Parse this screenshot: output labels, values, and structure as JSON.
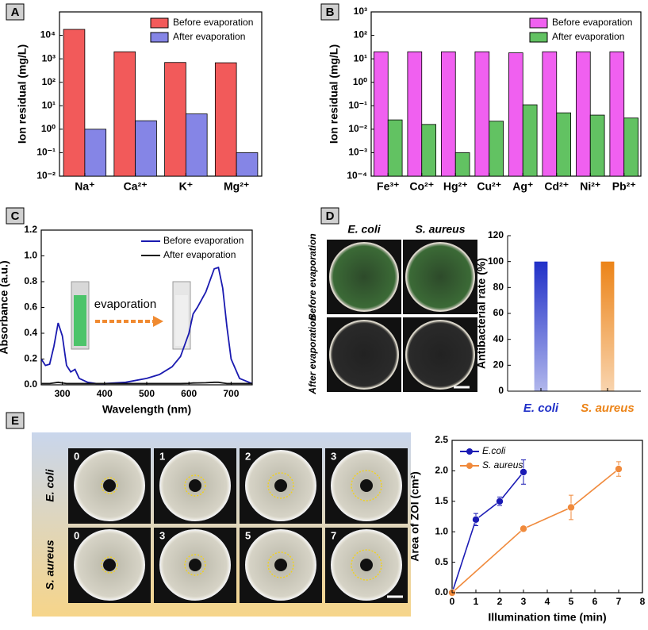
{
  "chart_data": [
    {
      "panel": "A",
      "type": "bar",
      "log_y": true,
      "ylabel": "Ion residual (mg/L)",
      "categories": [
        "Na⁺",
        "Ca²⁺",
        "K⁺",
        "Mg²⁺"
      ],
      "series": [
        {
          "name": "Before evaporation",
          "color": "#f25a5a",
          "values": [
            18000,
            2000,
            700,
            680
          ]
        },
        {
          "name": "After evaporation",
          "color": "#8585e6",
          "values": [
            1.0,
            2.3,
            4.5,
            0.1
          ]
        }
      ],
      "ylim": [
        0.01,
        100000
      ],
      "yticks": [
        {
          "value": 0.01,
          "label": "10⁻²"
        },
        {
          "value": 0.1,
          "label": "10⁻¹"
        },
        {
          "value": 1,
          "label": "10⁰"
        },
        {
          "value": 10,
          "label": "10¹"
        },
        {
          "value": 100,
          "label": "10²"
        },
        {
          "value": 1000,
          "label": "10³"
        },
        {
          "value": 10000,
          "label": "10⁴"
        }
      ],
      "legend": "upper right"
    },
    {
      "panel": "B",
      "type": "bar",
      "log_y": true,
      "ylabel": "Ion residual (mg/L)",
      "categories": [
        "Fe³⁺",
        "Co²⁺",
        "Hg²⁺",
        "Cu²⁺",
        "Ag⁺",
        "Cd²⁺",
        "Ni²⁺",
        "Pb²⁺"
      ],
      "series": [
        {
          "name": "Before evaporation",
          "color": "#f060f0",
          "values": [
            20,
            20,
            20,
            20,
            18,
            20,
            20,
            20
          ]
        },
        {
          "name": "After evaporation",
          "color": "#62c262",
          "values": [
            0.025,
            0.016,
            0.001,
            0.022,
            0.11,
            0.05,
            0.04,
            0.03
          ]
        }
      ],
      "ylim": [
        0.0001,
        1000
      ],
      "yticks": [
        {
          "value": 0.0001,
          "label": "10⁻⁴"
        },
        {
          "value": 0.001,
          "label": "10⁻³"
        },
        {
          "value": 0.01,
          "label": "10⁻²"
        },
        {
          "value": 0.1,
          "label": "10⁻¹"
        },
        {
          "value": 1,
          "label": "10⁰"
        },
        {
          "value": 10,
          "label": "10¹"
        },
        {
          "value": 100,
          "label": "10²"
        },
        {
          "value": 1000,
          "label": "10³"
        }
      ],
      "legend": "upper right"
    },
    {
      "panel": "C",
      "type": "line",
      "xlabel": "Wavelength (nm)",
      "ylabel": "Absorbance (a.u.)",
      "x": [
        250,
        260,
        270,
        280,
        290,
        300,
        310,
        320,
        330,
        340,
        360,
        380,
        400,
        450,
        500,
        530,
        560,
        580,
        600,
        610,
        620,
        640,
        660,
        670,
        680,
        690,
        700,
        720,
        750
      ],
      "series": [
        {
          "name": "Before evaporation",
          "color": "#1a1ab0",
          "values": [
            0.2,
            0.15,
            0.16,
            0.3,
            0.48,
            0.38,
            0.15,
            0.1,
            0.12,
            0.05,
            0.02,
            0.01,
            0.01,
            0.02,
            0.05,
            0.08,
            0.14,
            0.22,
            0.4,
            0.55,
            0.6,
            0.72,
            0.9,
            0.91,
            0.75,
            0.45,
            0.2,
            0.05,
            0.01
          ]
        },
        {
          "name": "After evaporation",
          "color": "#111111",
          "values": [
            0.01,
            0.01,
            0.01,
            0.015,
            0.02,
            0.015,
            0.01,
            0.01,
            0.01,
            0.01,
            0.01,
            0.01,
            0.01,
            0.01,
            0.01,
            0.01,
            0.01,
            0.01,
            0.012,
            0.014,
            0.015,
            0.016,
            0.02,
            0.02,
            0.015,
            0.01,
            0.01,
            0.01,
            0.01
          ]
        }
      ],
      "xlim": [
        250,
        750
      ],
      "xticks": [
        300,
        400,
        500,
        600,
        700
      ],
      "ylim": [
        0,
        1.2
      ],
      "yticks": [
        {
          "value": 0,
          "label": "0.0"
        },
        0.2,
        0.4,
        0.6,
        0.8,
        {
          "value": 1,
          "label": "1.0"
        },
        1.2
      ],
      "legend": "upper right",
      "annotation": "evaporation"
    },
    {
      "panel": "D",
      "type": "bar",
      "ylabel": "Antibacterial rate (%)",
      "categories": [
        "E. coli",
        "S. aureus"
      ],
      "values": [
        100,
        100
      ],
      "colors": [
        "#2030c8",
        "#ec8418"
      ],
      "ylim": [
        0,
        120
      ],
      "yticks": [
        0,
        20,
        40,
        60,
        80,
        100,
        120
      ]
    },
    {
      "panel": "E",
      "type": "errorline",
      "xlabel": "Illumination time (min)",
      "ylabel": "Area of ZOI (cm²)",
      "series": [
        {
          "name": "E.coli",
          "color": "#1a1ab4",
          "x": [
            0,
            1,
            2,
            3
          ],
          "values": [
            0,
            1.2,
            1.5,
            1.98
          ],
          "errors": [
            0,
            0.1,
            0.07,
            0.2
          ]
        },
        {
          "name": "S. aureus",
          "color": "#f08a3c",
          "x": [
            0,
            3,
            5,
            7
          ],
          "values": [
            0,
            1.05,
            1.4,
            2.03
          ],
          "errors": [
            0,
            0.03,
            0.2,
            0.12
          ]
        }
      ],
      "xlim": [
        0,
        8
      ],
      "xticks": [
        0,
        1,
        2,
        3,
        4,
        5,
        6,
        7,
        8
      ],
      "ylim": [
        0,
        2.5
      ],
      "yticks": [
        {
          "value": 0,
          "label": "0.0"
        },
        0.5,
        {
          "value": 1,
          "label": "1.0"
        },
        1.5,
        {
          "value": 2,
          "label": "2.0"
        },
        2.5
      ],
      "legend": "upper left"
    }
  ],
  "dishes_d": {
    "columns": [
      "E. coli",
      "S. aureus"
    ],
    "rows": [
      "Before evaporation",
      "After evaporation"
    ]
  },
  "dishes_e": {
    "rows": [
      {
        "label": "E. coli",
        "times": [
          0,
          1,
          2,
          3
        ]
      },
      {
        "label": "S. aureus",
        "times": [
          0,
          3,
          5,
          7
        ]
      }
    ]
  }
}
